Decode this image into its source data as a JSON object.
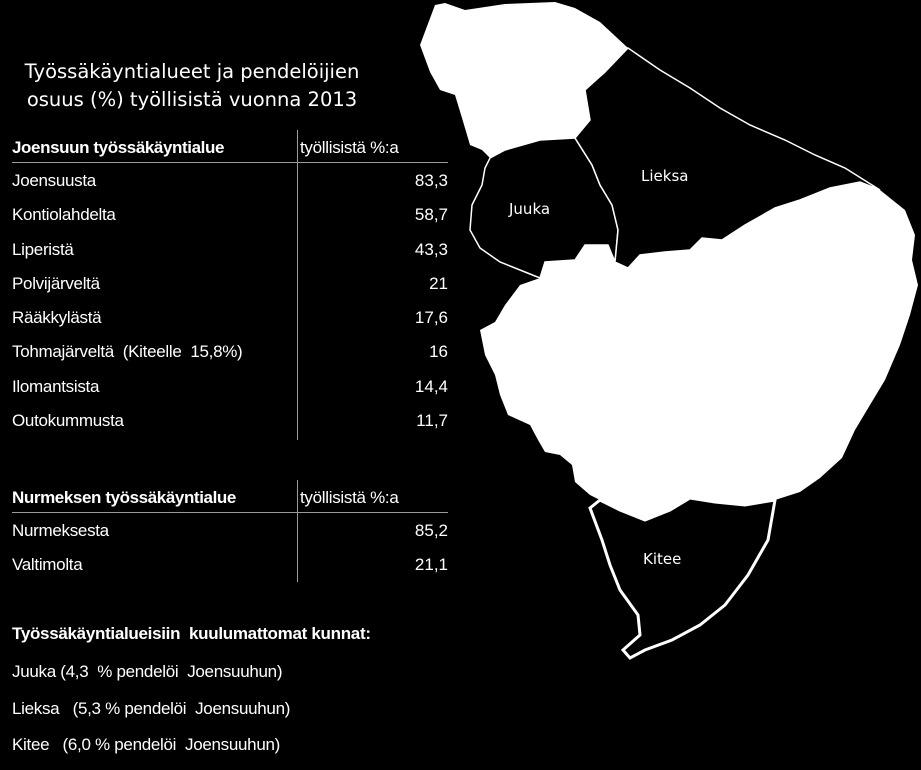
{
  "title_line1": "Työssäkäyntialueet ja pendelöijien",
  "title_line2": "osuus (%) työllisistä vuonna 2013",
  "joensuu": {
    "header": "Joensuun työssäkäyntialue",
    "col_header": "työllisistä %:a",
    "rows": [
      {
        "name": "Joensuusta",
        "value": "83,3"
      },
      {
        "name": "Kontiolahdelta",
        "value": "58,7"
      },
      {
        "name": "Liperistä",
        "value": "43,3"
      },
      {
        "name": "Polvijärveltä",
        "value": "21"
      },
      {
        "name": "Rääkkylästä",
        "value": "17,6"
      },
      {
        "name": "Tohmajärveltä  (Kiteelle  15,8%)",
        "value": "16"
      },
      {
        "name": "Ilomantsista",
        "value": "14,4"
      },
      {
        "name": "Outokummusta",
        "value": "11,7"
      }
    ]
  },
  "nurmes": {
    "header": "Nurmeksen työssäkäyntialue",
    "col_header": "työllisistä %:a",
    "rows": [
      {
        "name": "Nurmeksesta",
        "value": "85,2"
      },
      {
        "name": "Valtimolta",
        "value": "21,1"
      }
    ]
  },
  "notes": {
    "title": "Työssäkäyntialueisiin  kuulumattomat kunnat:",
    "items": [
      "Juuka (4,3  % pendelöi  Joensuuhun)",
      "Lieksa   (5,3 % pendelöi  Joensuuhun)",
      "Kitee   (6,0 % pendelöi  Joensuuhun)"
    ]
  },
  "map": {
    "labels": {
      "juuka": "Juuka",
      "lieksa": "Lieksa",
      "kitee": "Kitee"
    },
    "colors": {
      "area_fill": "#ffffff",
      "excluded_fill": "#000000",
      "background": "#000000",
      "border": "#ffffff"
    }
  }
}
